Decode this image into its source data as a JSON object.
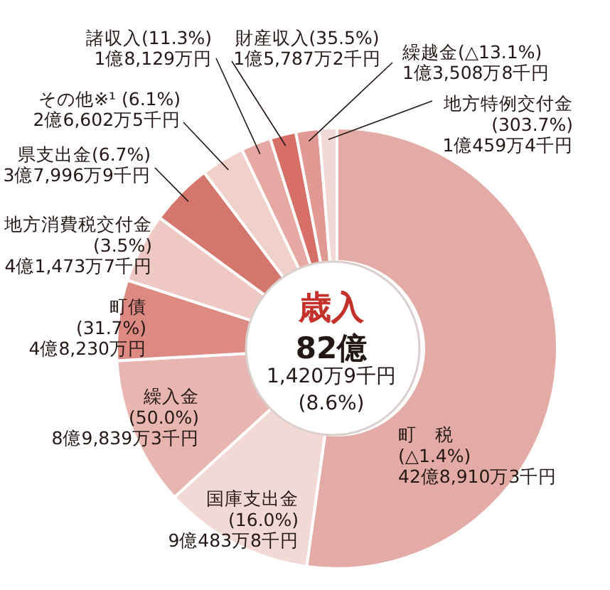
{
  "chart_data": {
    "type": "donut",
    "title": "歳入",
    "categories": [
      "町　税(△1.4%)",
      "国庫支出金(16.0%)",
      "繰入金(50.0%)",
      "町債(31.7%)",
      "地方消費税交付金(3.5%)",
      "県支出金(6.7%)",
      "その他※¹ (6.1%)",
      "諸収入(11.3%)",
      "財産収入(35.5%)",
      "繰越金(△13.1%)",
      "地方特例交付金(303.7%)"
    ],
    "values": [
      52.2,
      11.0,
      10.9,
      5.9,
      5.1,
      4.6,
      3.2,
      2.2,
      1.9,
      1.7,
      1.3
    ],
    "colors": [
      "#e4aaa5",
      "#f3d9d6",
      "#e8b5b0",
      "#dc8a82",
      "#efc7c3",
      "#d5766d",
      "#f1d0cc",
      "#e5a8a2",
      "#d66f66",
      "#e09a93",
      "#f3d9d6"
    ],
    "annotations": [
      "82億",
      "1,420万9千円",
      "(8.6%)",
      "42億8,910万3千円",
      "9億483万8千円",
      "8億9,839万3千円",
      "4億8,230万円",
      "4億1,473万7千円",
      "3億7,996万9千円",
      "2億6,602万5千円",
      "1億8,129万円",
      "1億5,787万2千円",
      "1億3,508万8千円",
      "1億459万4千円"
    ]
  }
}
